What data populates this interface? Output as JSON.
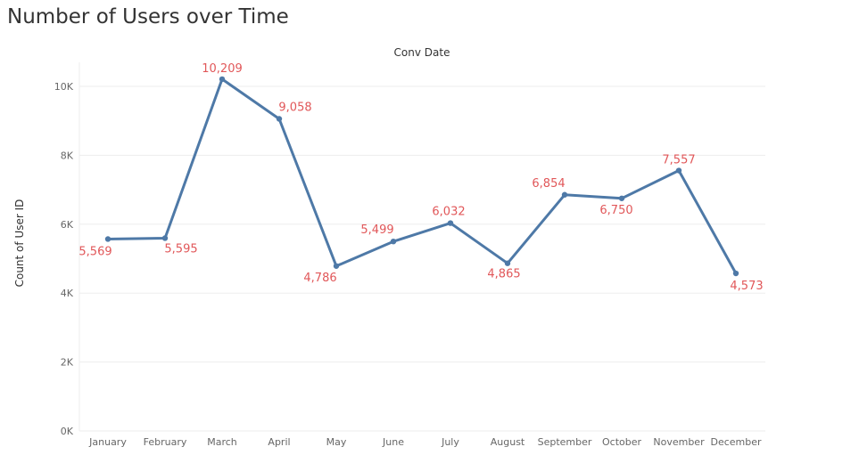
{
  "chart_data": {
    "type": "line",
    "title": "Number of Users over Time",
    "column_header": "Conv Date",
    "xlabel": "",
    "ylabel": "Count of User ID",
    "categories": [
      "January",
      "February",
      "March",
      "April",
      "May",
      "June",
      "July",
      "August",
      "September",
      "October",
      "November",
      "December"
    ],
    "series": [
      {
        "values": [
          5569,
          5595,
          10209,
          9058,
          4786,
          5499,
          6032,
          4865,
          6854,
          6750,
          7557,
          4573
        ],
        "labels": [
          "5,569",
          "5,595",
          "10,209",
          "9,058",
          "4,786",
          "5,499",
          "6,032",
          "4,865",
          "6,854",
          "6,750",
          "7,557",
          "4,573"
        ]
      }
    ],
    "yticks": [
      0,
      2000,
      4000,
      6000,
      8000,
      10000
    ],
    "ytick_labels": [
      "0K",
      "2K",
      "4K",
      "6K",
      "8K",
      "10K"
    ],
    "ylim": [
      0,
      10500
    ],
    "grid": true,
    "legend": "none",
    "colors": {
      "line": "#4e79a7",
      "data_label": "#e15759",
      "gridline": "#ededed",
      "axis_text": "#666666",
      "title_text": "#333333"
    }
  }
}
